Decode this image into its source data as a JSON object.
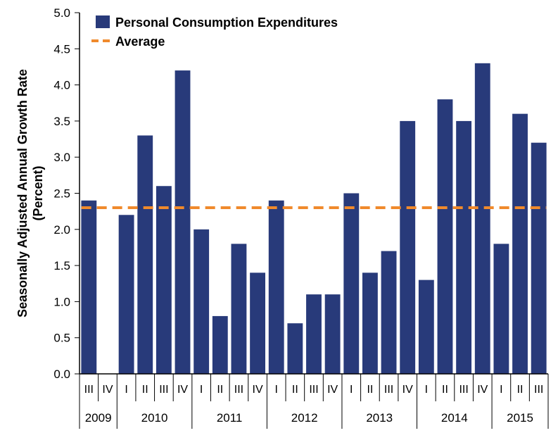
{
  "chart_data": {
    "type": "bar",
    "ylabel": "Seasonally Adjusted Annual Growth Rate\n(Percent)",
    "ylim": [
      0,
      5
    ],
    "yticks": [
      "0.0",
      "0.5",
      "1.0",
      "1.5",
      "2.0",
      "2.5",
      "3.0",
      "3.5",
      "4.0",
      "4.5",
      "5.0"
    ],
    "categories": [
      "III",
      "IV",
      "I",
      "II",
      "III",
      "IV",
      "I",
      "II",
      "III",
      "IV",
      "I",
      "II",
      "III",
      "IV",
      "I",
      "II",
      "III",
      "IV",
      "I",
      "II",
      "III",
      "IV",
      "I",
      "II",
      "III"
    ],
    "years": [
      {
        "label": "2009",
        "count": 2
      },
      {
        "label": "2010",
        "count": 4
      },
      {
        "label": "2011",
        "count": 4
      },
      {
        "label": "2012",
        "count": 4
      },
      {
        "label": "2013",
        "count": 4
      },
      {
        "label": "2014",
        "count": 4
      },
      {
        "label": "2015",
        "count": 3
      }
    ],
    "series": [
      {
        "name": "Personal Consumption Expenditures",
        "type": "bar",
        "color": "#283A7A",
        "values": [
          2.4,
          null,
          2.2,
          3.3,
          2.6,
          4.2,
          2.0,
          0.8,
          1.8,
          1.4,
          2.4,
          0.7,
          1.1,
          1.1,
          2.5,
          1.4,
          1.7,
          3.5,
          1.3,
          3.8,
          3.5,
          4.3,
          1.8,
          3.6,
          3.2
        ]
      },
      {
        "name": "Average",
        "type": "line",
        "style": "dashed",
        "color": "#F08A2C",
        "value": 2.3
      }
    ],
    "legend": "top-left",
    "grid": false
  }
}
